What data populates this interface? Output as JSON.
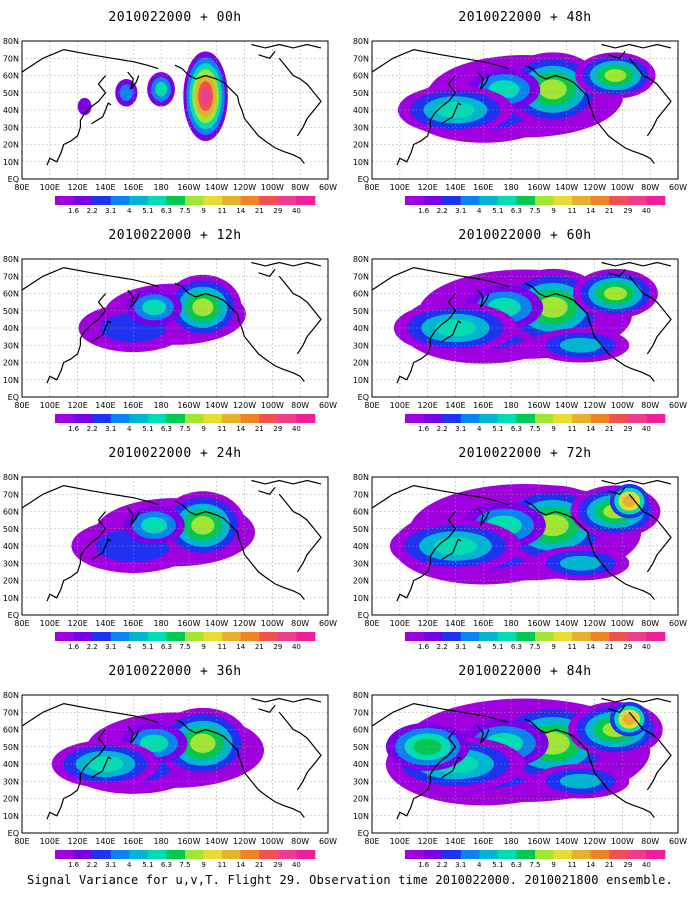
{
  "panels": [
    {
      "title": "2010022000 + 00h",
      "lead_hours": 0
    },
    {
      "title": "2010022000 + 48h",
      "lead_hours": 48
    },
    {
      "title": "2010022000 + 12h",
      "lead_hours": 12
    },
    {
      "title": "2010022000 + 60h",
      "lead_hours": 60
    },
    {
      "title": "2010022000 + 24h",
      "lead_hours": 24
    },
    {
      "title": "2010022000 + 72h",
      "lead_hours": 72
    },
    {
      "title": "2010022000 + 36h",
      "lead_hours": 36
    },
    {
      "title": "2010022000 + 84h",
      "lead_hours": 84
    }
  ],
  "lat_labels": [
    "80N",
    "70N",
    "60N",
    "50N",
    "40N",
    "30N",
    "20N",
    "10N",
    "EQ"
  ],
  "lon_labels": [
    "80E",
    "100E",
    "120E",
    "140E",
    "160E",
    "180",
    "160W",
    "140W",
    "120W",
    "100W",
    "80W",
    "60W"
  ],
  "colorbar": {
    "labels": [
      "1.6",
      "2.2",
      "3.1",
      "4",
      "5.1",
      "6.3",
      "7.5",
      "9",
      "11",
      "14",
      "21",
      "29",
      "40"
    ],
    "colors": [
      "#a000e0",
      "#7a00e6",
      "#1e32f0",
      "#0a82f0",
      "#00b4d2",
      "#00dcb4",
      "#00c850",
      "#a0e632",
      "#e6dc32",
      "#e6af2d",
      "#f08228",
      "#f05050",
      "#f03c8c",
      "#f01e9c"
    ]
  },
  "footer_text": "Signal Variance for u,v,T. Flight 29. Observation time 2010022000. 2010021800 ensemble."
}
